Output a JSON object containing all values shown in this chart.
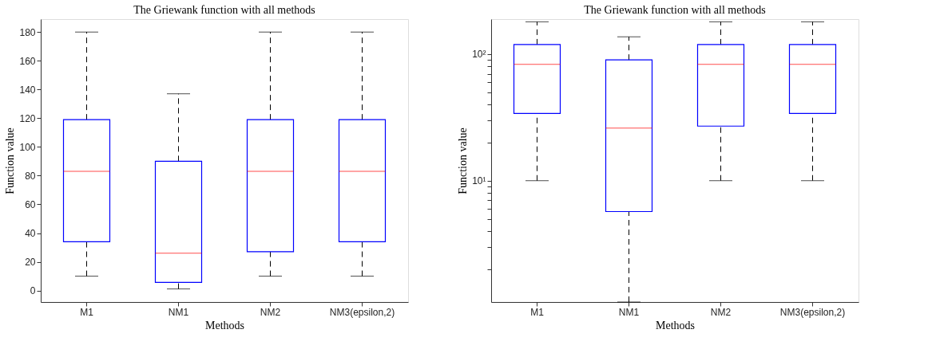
{
  "chart_data": [
    {
      "type": "box",
      "title": "The Griewank function with all methods",
      "xlabel": "Methods",
      "ylabel": "Function value",
      "categories": [
        "M1",
        "NM1",
        "NM2",
        "NM3(epsilon,2)"
      ],
      "ylim": [
        -8,
        189
      ],
      "yticks": [
        0,
        20,
        40,
        60,
        80,
        100,
        120,
        140,
        160,
        180
      ],
      "grid": false,
      "series": [
        {
          "boxes": [
            {
              "low": 10,
              "q1": 34,
              "median": 83,
              "q3": 119,
              "high": 180
            },
            {
              "low": 1.1,
              "q1": 5.7,
              "median": 26,
              "q3": 90,
              "high": 137
            },
            {
              "low": 10,
              "q1": 27,
              "median": 83,
              "q3": 119,
              "high": 180
            },
            {
              "low": 10,
              "q1": 34,
              "median": 83,
              "q3": 119,
              "high": 180
            }
          ]
        }
      ]
    },
    {
      "type": "box",
      "title": "The Griewank function with all methods",
      "xlabel": "Methods",
      "ylabel": "Function value",
      "categories": [
        "M1",
        "NM1",
        "NM2",
        "NM3(epsilon,2)"
      ],
      "ylim": [
        1.1,
        189
      ],
      "log": true,
      "grid": false,
      "yticks": [
        {
          "value": 2,
          "label": null
        },
        {
          "value": 3,
          "label": null
        },
        {
          "value": 4,
          "label": null
        },
        {
          "value": 5,
          "label": null
        },
        {
          "value": 6,
          "label": null
        },
        {
          "value": 7,
          "label": null
        },
        {
          "value": 8,
          "label": null
        },
        {
          "value": 9,
          "label": null
        },
        {
          "value": 10,
          "label": "10¹"
        },
        {
          "value": 20,
          "label": null
        },
        {
          "value": 30,
          "label": null
        },
        {
          "value": 40,
          "label": null
        },
        {
          "value": 50,
          "label": null
        },
        {
          "value": 60,
          "label": null
        },
        {
          "value": 70,
          "label": null
        },
        {
          "value": 80,
          "label": null
        },
        {
          "value": 90,
          "label": null
        },
        {
          "value": 100,
          "label": "10²"
        }
      ],
      "series": [
        {
          "boxes": [
            {
              "low": 10,
              "q1": 34,
              "median": 83,
              "q3": 119,
              "high": 180
            },
            {
              "low": 1.1,
              "q1": 5.7,
              "median": 26,
              "q3": 90,
              "high": 137
            },
            {
              "low": 10,
              "q1": 27,
              "median": 83,
              "q3": 119,
              "high": 180
            },
            {
              "low": 10,
              "q1": 34,
              "median": 83,
              "q3": 119,
              "high": 180
            }
          ]
        }
      ]
    }
  ]
}
